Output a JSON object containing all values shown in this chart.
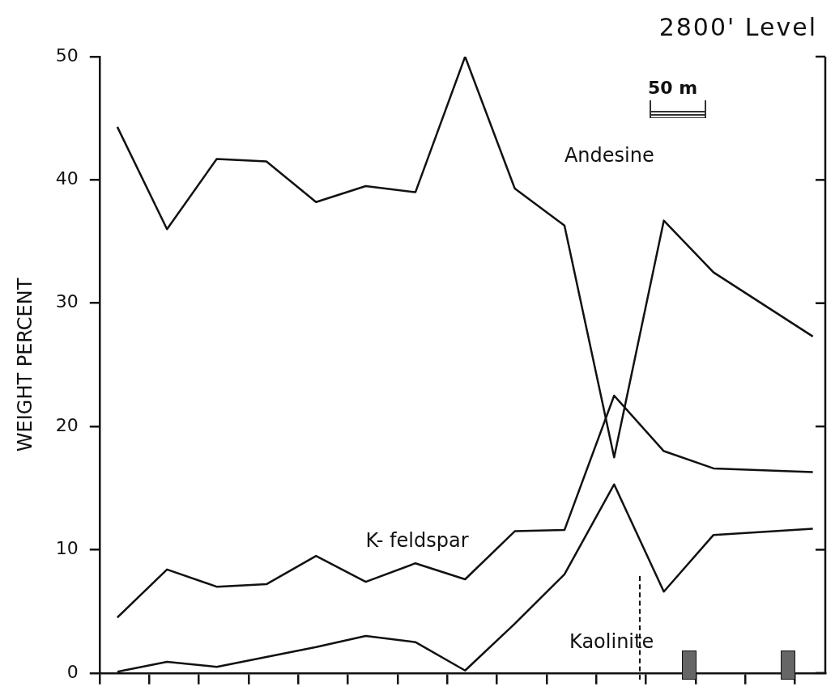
{
  "chart_data": {
    "type": "line",
    "title": "2800' Level",
    "ylabel": "WEIGHT PERCENT",
    "annotations": [
      "50 m"
    ],
    "categories": [
      null,
      null,
      null,
      null,
      null,
      null,
      null,
      null,
      null,
      null,
      null,
      null,
      null,
      null,
      null
    ],
    "series": [
      {
        "name": "Andesine",
        "color": "#111111",
        "values": [
          44.3,
          36,
          41.7,
          41.5,
          38.2,
          39.5,
          39,
          50,
          39.3,
          36.3,
          17.5,
          36.7,
          32.5,
          null,
          27.3
        ]
      },
      {
        "name": "K- feldspar",
        "color": "#111111",
        "values": [
          4.5,
          8.4,
          7,
          7.2,
          9.5,
          7.4,
          8.9,
          7.6,
          11.5,
          11.6,
          22.5,
          18,
          16.6,
          null,
          16.3
        ]
      },
      {
        "name": "Kaolinite",
        "color": "#111111",
        "values": [
          0.1,
          0.9,
          0.5,
          1.3,
          2.1,
          3,
          2.5,
          0.2,
          4,
          8,
          15.3,
          6.6,
          11.2,
          null,
          11.7
        ]
      }
    ],
    "ylim": [
      0,
      50
    ],
    "yticks": [
      0,
      10,
      20,
      30,
      40,
      50
    ],
    "grid": false,
    "legend": false,
    "tick_labels": "y",
    "marker": "none",
    "line_style": "solid"
  }
}
